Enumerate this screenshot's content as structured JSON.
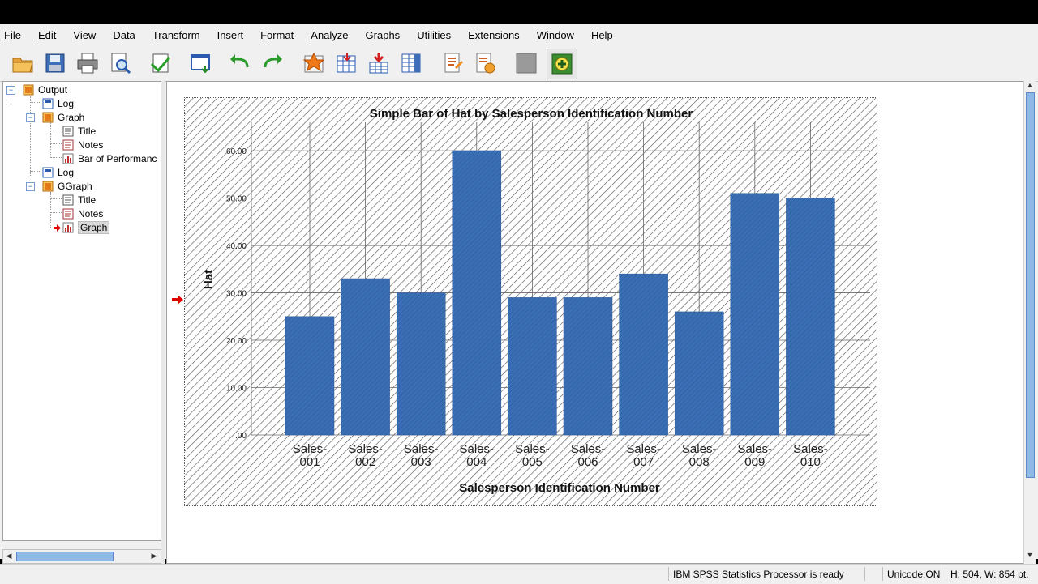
{
  "menu": [
    {
      "label": "File",
      "u": "F",
      "rest": "ile"
    },
    {
      "label": "Edit",
      "u": "E",
      "rest": "dit"
    },
    {
      "label": "View",
      "u": "V",
      "rest": "iew"
    },
    {
      "label": "Data",
      "u": "D",
      "rest": "ata"
    },
    {
      "label": "Transform",
      "u": "T",
      "rest": "ransform"
    },
    {
      "label": "Insert",
      "u": "I",
      "rest": "nsert"
    },
    {
      "label": "Format",
      "u": "F",
      "rest": "ormat"
    },
    {
      "label": "Analyze",
      "u": "A",
      "rest": "nalyze"
    },
    {
      "label": "Graphs",
      "u": "G",
      "rest": "raphs"
    },
    {
      "label": "Utilities",
      "u": "U",
      "rest": "tilities"
    },
    {
      "label": "Extensions",
      "u": "E",
      "rest": "xtensions"
    },
    {
      "label": "Window",
      "u": "W",
      "rest": "indow"
    },
    {
      "label": "Help",
      "u": "H",
      "rest": "elp"
    }
  ],
  "toolbar_icons": [
    "open-icon",
    "save-icon",
    "print-icon",
    "print-preview-icon",
    "export-icon",
    "recall-dialog-icon",
    "undo-icon",
    "redo-icon",
    "goto-data-icon",
    "goto-case-icon",
    "insert-variable-icon",
    "variables-icon",
    "insert-title-icon",
    "insert-text-icon",
    "stop-icon",
    "add-icon"
  ],
  "outline": {
    "root": "Output",
    "nodes": [
      {
        "label": "Log"
      },
      {
        "label": "Graph"
      },
      {
        "label": "Title"
      },
      {
        "label": "Notes"
      },
      {
        "label": "Bar of Performanc"
      },
      {
        "label": "Log"
      },
      {
        "label": "GGraph"
      },
      {
        "label": "Title"
      },
      {
        "label": "Notes"
      },
      {
        "label": "Graph"
      }
    ]
  },
  "status": {
    "processor": "IBM SPSS Statistics Processor is ready",
    "unicode": "Unicode:ON",
    "dims": "H: 504, W: 854 pt."
  },
  "colors": {
    "bar": "#3a6fb5",
    "accent_red": "#e00000"
  },
  "chart_data": {
    "type": "bar",
    "title": "Simple Bar of Hat by Salesperson Identification Number",
    "xlabel": "Salesperson Identification Number",
    "ylabel": "Hat",
    "categories": [
      "Sales-001",
      "Sales-002",
      "Sales-003",
      "Sales-004",
      "Sales-005",
      "Sales-006",
      "Sales-007",
      "Sales-008",
      "Sales-009",
      "Sales-010"
    ],
    "category_lines": [
      [
        "Sales-",
        "001"
      ],
      [
        "Sales-",
        "002"
      ],
      [
        "Sales-",
        "003"
      ],
      [
        "Sales-",
        "004"
      ],
      [
        "Sales-",
        "005"
      ],
      [
        "Sales-",
        "006"
      ],
      [
        "Sales-",
        "007"
      ],
      [
        "Sales-",
        "008"
      ],
      [
        "Sales-",
        "009"
      ],
      [
        "Sales-",
        "010"
      ]
    ],
    "values": [
      25,
      33,
      30,
      60,
      29,
      29,
      34,
      26,
      51,
      50
    ],
    "ylim": [
      0,
      66
    ],
    "yticks": [
      ".00",
      "10.00",
      "20.00",
      "30.00",
      "40.00",
      "50.00",
      "60.00"
    ],
    "grid": true
  }
}
